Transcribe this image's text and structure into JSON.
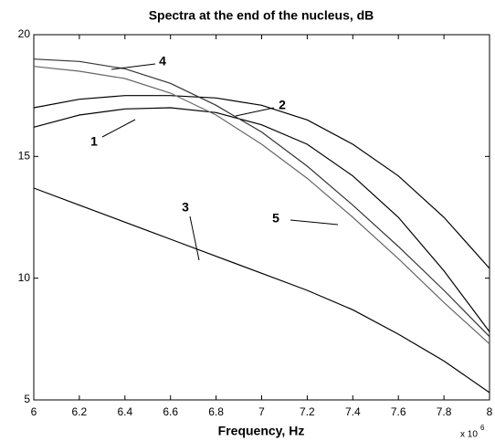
{
  "chart_data": {
    "type": "line",
    "title": "Spectra at the end of the nucleus, dB",
    "x_label": "Frequency, Hz",
    "x_multiplier": {
      "base": "x 10",
      "exponent": "6"
    },
    "x": [
      6,
      6.2,
      6.4,
      6.6,
      6.8,
      7,
      7.2,
      7.4,
      7.6,
      7.8,
      8
    ],
    "series": [
      {
        "name": "1",
        "color": "#000000",
        "values": [
          16.2,
          16.7,
          16.95,
          17.0,
          16.8,
          16.3,
          15.5,
          14.2,
          12.5,
          10.3,
          7.8
        ]
      },
      {
        "name": "2",
        "color": "#000000",
        "values": [
          17.0,
          17.35,
          17.5,
          17.5,
          17.4,
          17.1,
          16.5,
          15.5,
          14.2,
          12.5,
          10.4
        ]
      },
      {
        "name": "3",
        "color": "#000000",
        "values": [
          13.7,
          13.0,
          12.3,
          11.6,
          10.9,
          10.2,
          9.5,
          8.7,
          7.7,
          6.6,
          5.3
        ]
      },
      {
        "name": "4",
        "color": "#333333",
        "values": [
          19.0,
          18.9,
          18.6,
          18.0,
          17.1,
          16.0,
          14.6,
          13.0,
          11.3,
          9.5,
          7.6
        ]
      },
      {
        "name": "5",
        "color": "#666666",
        "values": [
          18.7,
          18.5,
          18.2,
          17.6,
          16.7,
          15.5,
          14.1,
          12.5,
          10.8,
          9.0,
          7.3
        ]
      }
    ],
    "xlim": [
      6,
      8
    ],
    "xticks": [
      6,
      6.2,
      6.4,
      6.6,
      6.8,
      7,
      7.2,
      7.4,
      7.6,
      7.8,
      8
    ],
    "ylim": [
      5,
      20
    ],
    "yticks": [
      5,
      10,
      15,
      20
    ],
    "grid": false
  }
}
